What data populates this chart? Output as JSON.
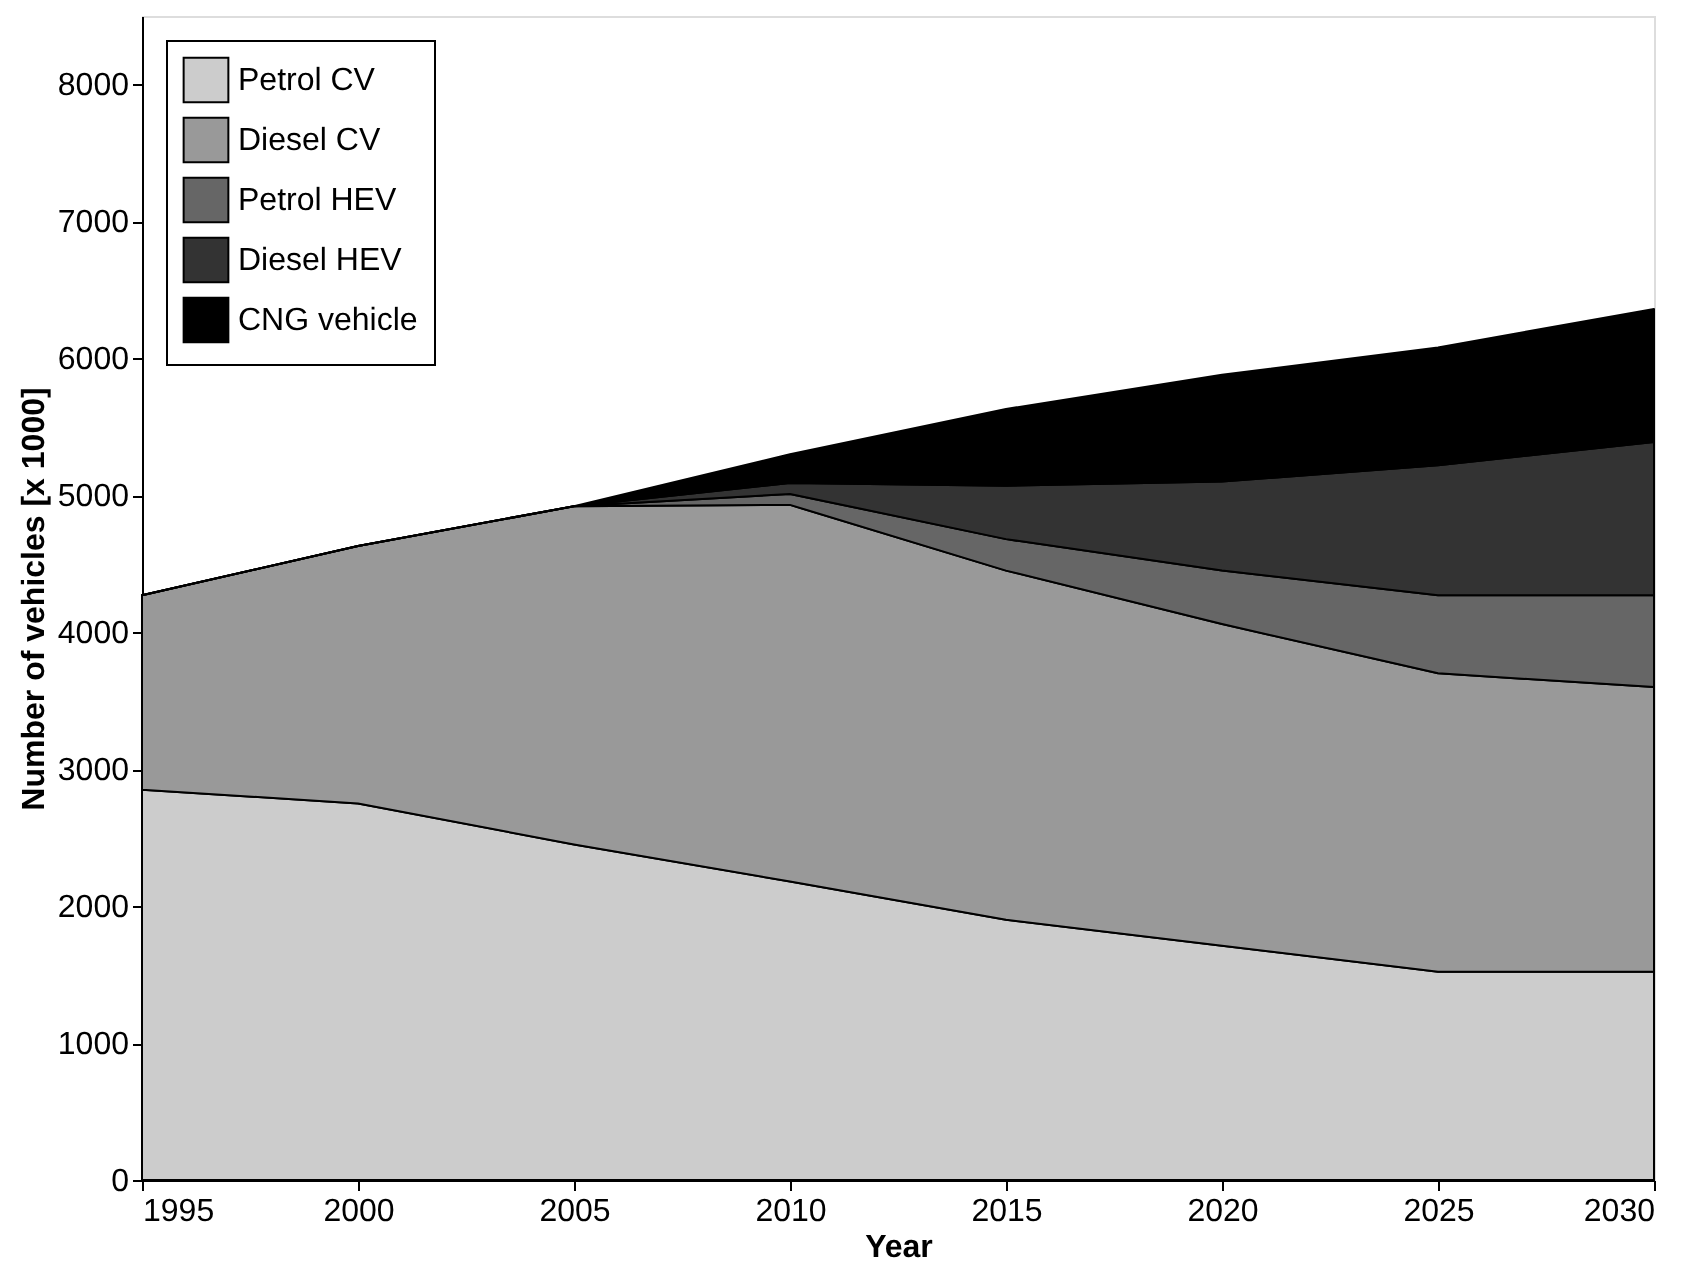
{
  "chart_data": {
    "type": "area",
    "stacked": true,
    "xlabel": "Year",
    "ylabel": "Number of vehicles [x 1000]",
    "x": [
      1995,
      2000,
      2005,
      2010,
      2015,
      2020,
      2025,
      2030
    ],
    "series": [
      {
        "name": "Petrol CV",
        "color": "#cccccc",
        "values": [
          2850,
          2750,
          2450,
          2180,
          1900,
          1710,
          1520,
          1520
        ]
      },
      {
        "name": "Diesel CV",
        "color": "#999999",
        "values": [
          1420,
          1880,
          2470,
          2750,
          2550,
          2350,
          2180,
          2080
        ]
      },
      {
        "name": "Petrol HEV",
        "color": "#666666",
        "values": [
          0,
          0,
          0,
          80,
          230,
          390,
          570,
          670
        ]
      },
      {
        "name": "Diesel HEV",
        "color": "#333333",
        "values": [
          0,
          0,
          0,
          80,
          390,
          650,
          950,
          1120
        ]
      },
      {
        "name": "CNG vehicle",
        "color": "#000000",
        "values": [
          0,
          0,
          0,
          210,
          560,
          780,
          860,
          970
        ]
      }
    ],
    "xlim": [
      1995,
      2030
    ],
    "xticks": [
      1995,
      2000,
      2005,
      2010,
      2015,
      2020,
      2025,
      2030
    ],
    "ylim": [
      0,
      8500
    ],
    "yticks": [
      0,
      1000,
      2000,
      3000,
      4000,
      5000,
      6000,
      7000,
      8000
    ],
    "grid": false,
    "legend": "top left"
  }
}
